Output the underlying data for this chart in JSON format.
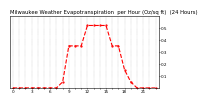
{
  "title": "Milwaukee Weather Evapotranspiration  per Hour (Oz/sq ft)  (24 Hours)",
  "hours": [
    0,
    1,
    2,
    3,
    4,
    5,
    6,
    7,
    8,
    9,
    10,
    11,
    12,
    13,
    14,
    15,
    16,
    17,
    18,
    19,
    20,
    21,
    22,
    23
  ],
  "values": [
    0.0,
    0.0,
    0.0,
    0.0,
    0.0,
    0.0,
    0.0,
    0.0,
    0.05,
    0.35,
    0.35,
    0.35,
    0.52,
    0.52,
    0.52,
    0.52,
    0.35,
    0.35,
    0.15,
    0.05,
    0.0,
    0.0,
    0.0,
    0.0
  ],
  "line_color": "#ff0000",
  "line_style": "--",
  "line_width": 0.8,
  "grid_color": "#999999",
  "grid_style": ":",
  "bg_color": "#ffffff",
  "ylim": [
    0,
    0.6
  ],
  "ytick_vals": [
    0.1,
    0.2,
    0.3,
    0.4,
    0.5
  ],
  "xtick_step": 1,
  "title_fontsize": 3.8,
  "tick_fontsize": 3.0,
  "marker_size": 1.2
}
